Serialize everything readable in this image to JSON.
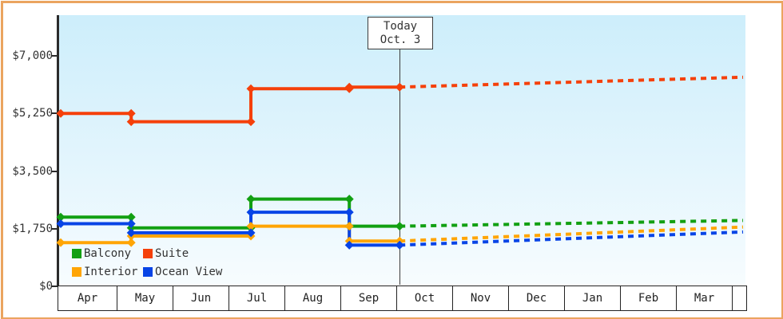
{
  "chart_data": {
    "type": "line",
    "subtype": "step-price-history-with-forecast",
    "title": "",
    "today_marker": {
      "line1": "Today",
      "line2": "Oct. 3",
      "month_offset": 6.06
    },
    "x_axis": {
      "months": [
        "Apr",
        "May",
        "Jun",
        "Jul",
        "Aug",
        "Sep",
        "Oct",
        "Nov",
        "Dec",
        "Jan",
        "Feb",
        "Mar"
      ],
      "range_month_offset": [
        0,
        12.2
      ]
    },
    "y_axis": {
      "ticks": [
        {
          "label": "$0",
          "value": 0
        },
        {
          "label": "$1,750",
          "value": 1750
        },
        {
          "label": "$3,500",
          "value": 3500
        },
        {
          "label": "$5,250",
          "value": 5250
        },
        {
          "label": "$7,000",
          "value": 7000
        }
      ],
      "ylim": [
        0,
        7000
      ]
    },
    "series": [
      {
        "name": "Balcony",
        "color": "#12a012",
        "points": [
          {
            "m": 0.0,
            "price": 2100
          },
          {
            "m": 1.26,
            "price": 1775
          },
          {
            "m": 3.4,
            "price": 2650
          },
          {
            "m": 5.16,
            "price": 1825
          }
        ],
        "forecast": {
          "m": 12.2,
          "price": 2000
        }
      },
      {
        "name": "Suite",
        "color": "#f5400a",
        "points": [
          {
            "m": 0.0,
            "price": 5250
          },
          {
            "m": 1.26,
            "price": 5000
          },
          {
            "m": 3.4,
            "price": 6000
          },
          {
            "m": 5.16,
            "price": 6050
          }
        ],
        "forecast": {
          "m": 12.2,
          "price": 6350
        }
      },
      {
        "name": "Interior",
        "color": "#ffa505",
        "points": [
          {
            "m": 0.0,
            "price": 1325
          },
          {
            "m": 1.26,
            "price": 1525
          },
          {
            "m": 3.4,
            "price": 1825
          },
          {
            "m": 5.16,
            "price": 1375
          }
        ],
        "forecast": {
          "m": 12.2,
          "price": 1800
        }
      },
      {
        "name": "Ocean View",
        "color": "#0844e6",
        "points": [
          {
            "m": 0.0,
            "price": 1900
          },
          {
            "m": 1.26,
            "price": 1625
          },
          {
            "m": 3.4,
            "price": 2250
          },
          {
            "m": 5.16,
            "price": 1250
          }
        ],
        "forecast": {
          "m": 12.2,
          "price": 1650
        }
      }
    ],
    "legend": {
      "items": [
        {
          "label": "Balcony"
        },
        {
          "label": "Suite"
        },
        {
          "label": "Interior"
        },
        {
          "label": "Ocean View"
        }
      ],
      "position": "bottom-left-inside"
    },
    "layout": {
      "grid": false,
      "frame_color": "#eba45f"
    }
  }
}
